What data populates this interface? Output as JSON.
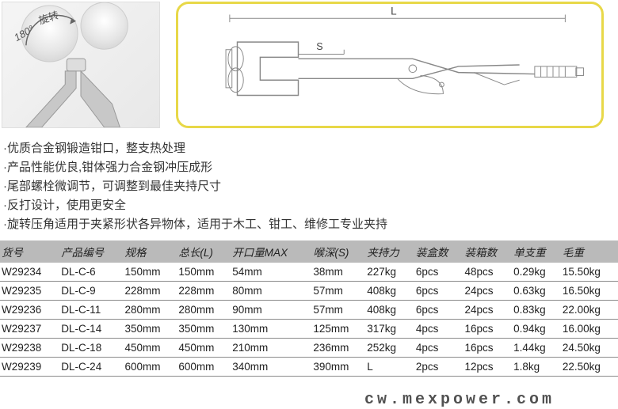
{
  "photo_label": "180° 旋转",
  "diagram_labels": {
    "L": "L",
    "S": "S"
  },
  "features": [
    "·优质合金钢锻造钳口，整支热处理",
    "·产品性能优良,钳体强力合金钢冲压成形",
    "·尾部螺栓微调节，可调整到最佳夹持尺寸",
    "·反打设计，使用更安全",
    "·旋转压角适用于夹紧形状各异物体，适用于木工、钳工、维修工专业夹持"
  ],
  "table": {
    "columns": [
      "货号",
      "产品编号",
      "规格",
      "总长(L)",
      "开口量MAX",
      "喉深(S)",
      "夹持力",
      "装盒数",
      "装箱数",
      "单支重",
      "毛重"
    ],
    "rows": [
      [
        "W29234",
        "DL-C-6",
        "150mm",
        "150mm",
        "54mm",
        "38mm",
        "227kg",
        "6pcs",
        "48pcs",
        "0.29kg",
        "15.50kg"
      ],
      [
        "W29235",
        "DL-C-9",
        "228mm",
        "228mm",
        "80mm",
        "57mm",
        "408kg",
        "6pcs",
        "24pcs",
        "0.63kg",
        "16.50kg"
      ],
      [
        "W29236",
        "DL-C-11",
        "280mm",
        "280mm",
        "90mm",
        "57mm",
        "408kg",
        "6pcs",
        "24pcs",
        "0.83kg",
        "22.00kg"
      ],
      [
        "W29237",
        "DL-C-14",
        "350mm",
        "350mm",
        "130mm",
        "125mm",
        "317kg",
        "4pcs",
        "16pcs",
        "0.94kg",
        "16.00kg"
      ],
      [
        "W29238",
        "DL-C-18",
        "450mm",
        "450mm",
        "210mm",
        "236mm",
        "252kg",
        "4pcs",
        "16pcs",
        "1.44kg",
        "24.50kg"
      ],
      [
        "W29239",
        "DL-C-24",
        "600mm",
        "600mm",
        "340mm",
        "390mm",
        "L",
        "2pcs",
        "12pcs",
        "1.8kg",
        "22.50kg"
      ]
    ],
    "header_bg": "#bababa",
    "border_color": "#8a8a8a"
  },
  "watermark": "cw.mexpower.com"
}
